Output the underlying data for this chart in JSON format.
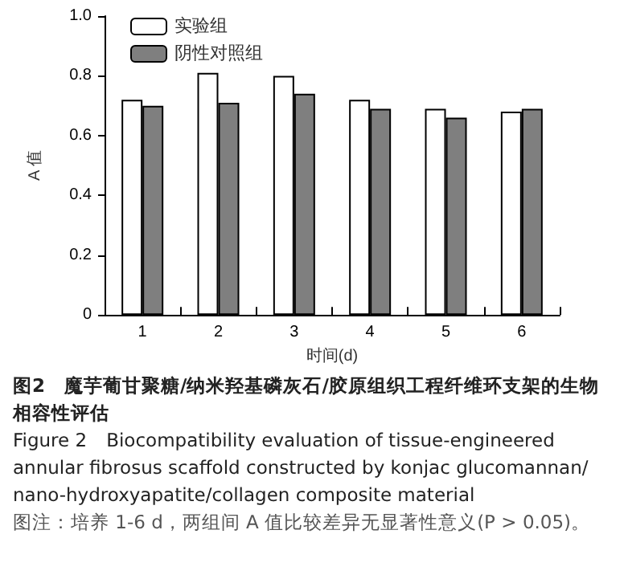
{
  "chart_data": {
    "type": "bar",
    "title": "图2　魔芋葡甘聚糖/纳米羟基磷灰石/胶原组织工程纤维环支架的生物相容性评估",
    "subtitle": "Figure 2　Biocompatibility evaluation of tissue-engineered annular fibrosus scaffold constructed by konjac glucomannan/ nano-hydroxyapatite/collagen composite material",
    "annotations": [
      "图注：培养 1-6 d，两组间 A 值比较差异无显著性意义(P > 0.05)。"
    ],
    "xlabel": "时间(d)",
    "ylabel": "A 值",
    "categories": [
      "1",
      "2",
      "3",
      "4",
      "5",
      "6"
    ],
    "series": [
      {
        "name": "实验组",
        "color": "#ffffff",
        "values": [
          0.72,
          0.81,
          0.8,
          0.72,
          0.69,
          0.68
        ]
      },
      {
        "name": "阴性对照组",
        "color": "#7f7f7f",
        "values": [
          0.7,
          0.71,
          0.74,
          0.69,
          0.66,
          0.69
        ]
      }
    ],
    "ylim": [
      0,
      1
    ],
    "yticks": [
      {
        "value": 0,
        "label": "0"
      },
      {
        "value": 0.2,
        "label": "0.2"
      },
      {
        "value": 0.4,
        "label": "0.4"
      },
      {
        "value": 0.6,
        "label": "0.6"
      },
      {
        "value": 0.8,
        "label": "0.8"
      },
      {
        "value": 1,
        "label": "1.0"
      }
    ],
    "grid": false,
    "legend": "top left"
  }
}
